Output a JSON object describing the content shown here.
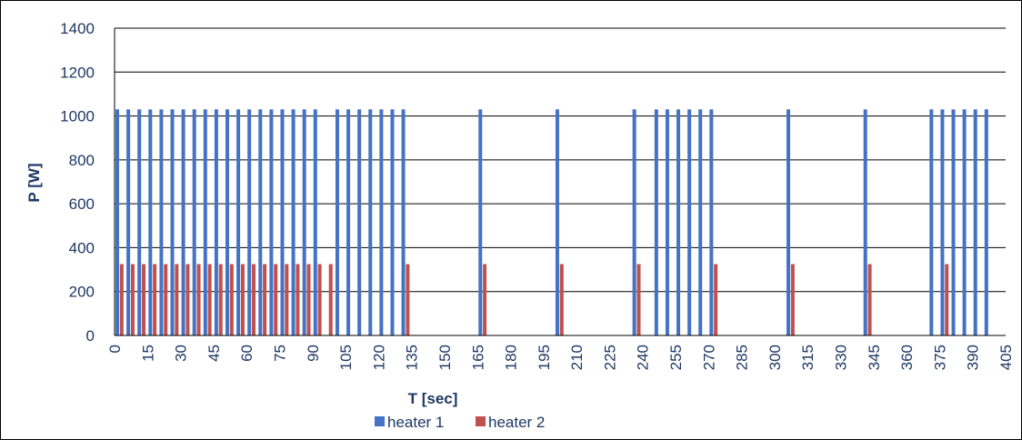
{
  "chart_data": {
    "type": "bar",
    "xlabel": "T [sec]",
    "ylabel": "P [W]",
    "ylim": [
      0,
      1400
    ],
    "yticks": [
      "0",
      "200",
      "400",
      "600",
      "800",
      "1000",
      "1200",
      "1400"
    ],
    "xlim": [
      0,
      405
    ],
    "xticks": [
      "0",
      "15",
      "30",
      "45",
      "60",
      "75",
      "90",
      "105",
      "120",
      "135",
      "150",
      "165",
      "180",
      "195",
      "210",
      "225",
      "240",
      "255",
      "270",
      "285",
      "300",
      "315",
      "330",
      "345",
      "360",
      "375",
      "390",
      "405"
    ],
    "grid": "horizontal",
    "legend_position": "bottom",
    "series": [
      {
        "name": "heater 1",
        "color": "#4472c4",
        "value": 1030,
        "x": [
          0,
          5,
          10,
          15,
          20,
          25,
          30,
          35,
          40,
          45,
          50,
          55,
          60,
          65,
          70,
          75,
          80,
          85,
          90,
          100,
          105,
          110,
          115,
          120,
          125,
          130,
          165,
          200,
          235,
          245,
          250,
          255,
          260,
          265,
          270,
          305,
          340,
          370,
          375,
          380,
          385,
          390,
          395
        ]
      },
      {
        "name": "heater 2",
        "color": "#c0504d",
        "value": 325,
        "x": [
          2,
          7,
          12,
          17,
          22,
          27,
          32,
          37,
          42,
          47,
          52,
          57,
          62,
          67,
          72,
          77,
          82,
          87,
          92,
          97,
          132,
          167,
          202,
          237,
          272,
          307,
          342,
          377
        ]
      }
    ]
  }
}
